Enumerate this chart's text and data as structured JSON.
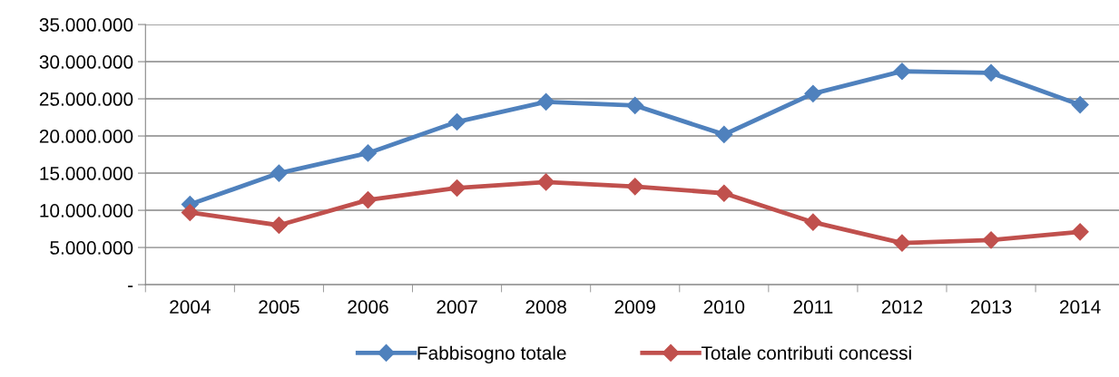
{
  "chart_data": {
    "type": "line",
    "categories": [
      "2004",
      "2005",
      "2006",
      "2007",
      "2008",
      "2009",
      "2010",
      "2011",
      "2012",
      "2013",
      "2014"
    ],
    "series": [
      {
        "name": "Fabbisogno totale",
        "color": "#4f81bd",
        "values": [
          10800000,
          15000000,
          17700000,
          21900000,
          24600000,
          24100000,
          20200000,
          25700000,
          28700000,
          28500000,
          24200000
        ]
      },
      {
        "name": "Totale contributi concessi",
        "color": "#c0504d",
        "values": [
          9700000,
          8000000,
          11400000,
          13000000,
          13800000,
          13200000,
          12300000,
          8400000,
          5600000,
          6000000,
          7100000
        ]
      }
    ],
    "ylim": [
      0,
      35000000
    ],
    "yticks": [
      {
        "value": 0,
        "label": "-"
      },
      {
        "value": 5000000,
        "label": "5.000.000"
      },
      {
        "value": 10000000,
        "label": "10.000.000"
      },
      {
        "value": 15000000,
        "label": "15.000.000"
      },
      {
        "value": 20000000,
        "label": "20.000.000"
      },
      {
        "value": 25000000,
        "label": "25.000.000"
      },
      {
        "value": 30000000,
        "label": "30.000.000"
      },
      {
        "value": 35000000,
        "label": "35.000.000"
      }
    ],
    "grid": "y",
    "legend": "bottom",
    "marker": "diamond",
    "line_style": "solid"
  }
}
